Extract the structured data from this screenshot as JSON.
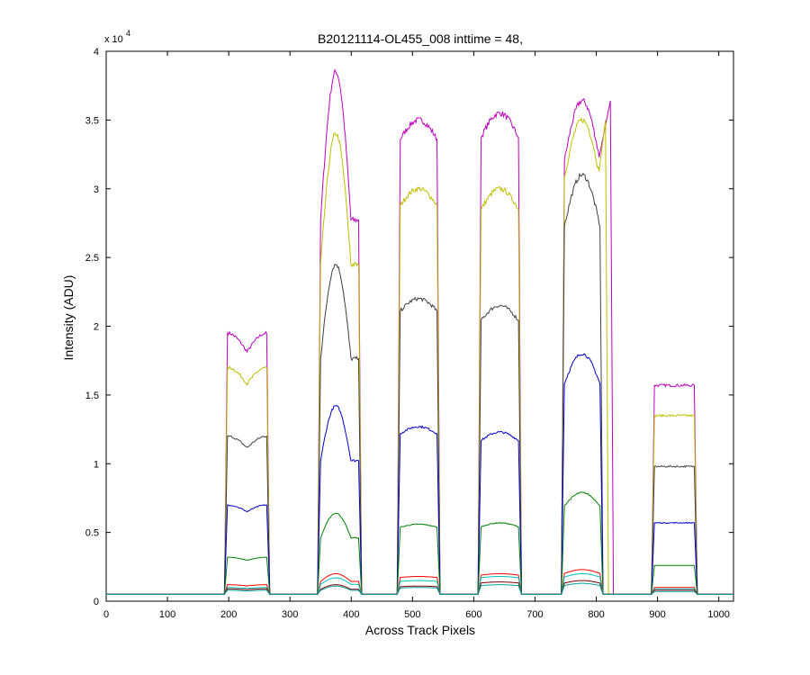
{
  "chart_data": {
    "type": "line",
    "title": "B20121114-OL455_008 inttime = 48,",
    "xlabel": "Across Track Pixels",
    "ylabel": "Intensity (ADU)",
    "y_multiplier_base": "x 10",
    "y_multiplier_exponent": "4",
    "xlim": [
      0,
      1024
    ],
    "ylim": [
      0,
      40000
    ],
    "x_ticks": [
      0,
      100,
      200,
      300,
      400,
      500,
      600,
      700,
      800,
      900,
      1000
    ],
    "x_tick_labels": [
      "0",
      "100",
      "200",
      "300",
      "400",
      "500",
      "600",
      "700",
      "800",
      "900",
      "1000"
    ],
    "y_ticks": [
      0,
      5000,
      10000,
      15000,
      20000,
      25000,
      30000,
      35000,
      40000
    ],
    "y_tick_labels": [
      "0",
      "0.5",
      "1",
      "1.5",
      "2",
      "2.5",
      "3",
      "3.5",
      "4"
    ],
    "grid": false,
    "legend": "none",
    "baseline": 500,
    "segments": [
      {
        "x_start": 198,
        "x_end": 262
      },
      {
        "x_start": 350,
        "x_end": 412
      },
      {
        "x_start": 480,
        "x_end": 540
      },
      {
        "x_start": 612,
        "x_end": 673
      },
      {
        "x_start": 748,
        "x_end": 806
      },
      {
        "x_start": 895,
        "x_end": 960
      }
    ],
    "series": [
      {
        "color": "#bf00bf",
        "levels": [
          19500,
          38500,
          35000,
          35500,
          36400,
          15700
        ]
      },
      {
        "color": "#bfbf00",
        "levels": [
          17000,
          34000,
          30000,
          30000,
          35000,
          13500
        ]
      },
      {
        "color": "#404040",
        "levels": [
          12000,
          24500,
          22000,
          21500,
          31000,
          9800
        ]
      },
      {
        "color": "#0000cc",
        "levels": [
          7000,
          14200,
          12700,
          12300,
          18000,
          5700
        ]
      },
      {
        "color": "#008000",
        "levels": [
          3200,
          6400,
          5600,
          5700,
          7900,
          2600
        ]
      },
      {
        "color": "#ff0000",
        "levels": [
          1200,
          2000,
          1800,
          2000,
          2300,
          1000
        ]
      },
      {
        "color": "#00bfbf",
        "levels": [
          1000,
          1700,
          1500,
          1800,
          2000,
          900
        ]
      },
      {
        "color": "#800000",
        "levels": [
          900,
          1200,
          1100,
          1400,
          1500,
          800
        ]
      },
      {
        "color": "#00a0a0",
        "levels": [
          800,
          1100,
          1000,
          1200,
          1300,
          700
        ]
      }
    ],
    "saturation_extension": [
      {
        "color": "#bf00bf",
        "x_end": 823
      },
      {
        "color": "#bfbf00",
        "x_end": 815
      }
    ]
  }
}
